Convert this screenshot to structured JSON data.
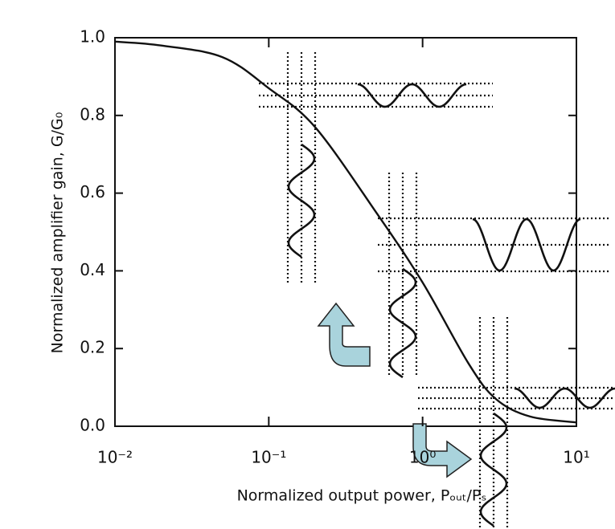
{
  "chart_data": {
    "type": "line",
    "xlabel": "Normalized output power, Pₒᵤₜ/Pₛ",
    "ylabel": "Normalized amplifier gain, G/G₀",
    "log_x": true,
    "xlim": [
      0.01,
      10
    ],
    "ylim": [
      0,
      1.0
    ],
    "xticks": [
      {
        "value": 0.01,
        "label": "10⁻²"
      },
      {
        "value": 0.1,
        "label": "10⁻¹"
      },
      {
        "value": 1,
        "label": "10⁰"
      },
      {
        "value": 10,
        "label": "10¹"
      }
    ],
    "yticks": [
      {
        "value": 0,
        "label": "0.0"
      },
      {
        "value": 0.2,
        "label": "0.2"
      },
      {
        "value": 0.4,
        "label": "0.4"
      },
      {
        "value": 0.6,
        "label": "0.6"
      },
      {
        "value": 0.8,
        "label": "0.8"
      },
      {
        "value": 1.0,
        "label": "1.0"
      }
    ],
    "series": [
      {
        "color": "#111111",
        "x": [
          0.01,
          0.02,
          0.05,
          0.1,
          0.2,
          0.5,
          1,
          2,
          3,
          5,
          10
        ],
        "values": [
          0.99,
          0.98,
          0.95,
          0.87,
          0.77,
          0.55,
          0.37,
          0.16,
          0.07,
          0.025,
          0.01
        ]
      }
    ]
  }
}
